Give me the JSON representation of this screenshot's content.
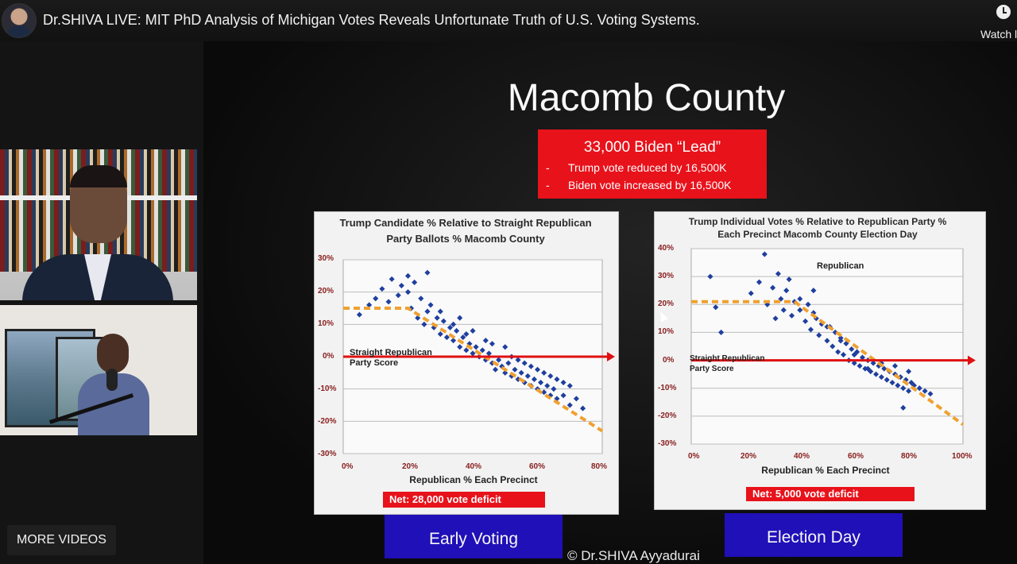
{
  "header": {
    "title": "Dr.SHIVA LIVE: MIT PhD Analysis of Michigan Votes Reveals Unfortunate Truth of U.S. Voting Systems.",
    "watch_label": "Watch l"
  },
  "sidebar": {
    "more_videos_label": "MORE VIDEOS"
  },
  "slide": {
    "title": "Macomb County",
    "box_headline": "33,000 Biden “Lead”",
    "box_lines": [
      "Trump vote reduced by 16,500K",
      "Biden vote increased by 16,500K"
    ],
    "dash": "-",
    "left_chart_title": "Trump Candidate % Relative to Straight Republican Party Ballots % Macomb County",
    "left_yticks": [
      "30%",
      "20%",
      "10%",
      "0%",
      "-10%",
      "-20%",
      "-30%"
    ],
    "left_xticks": [
      "0%",
      "20%",
      "40%",
      "60%",
      "80%"
    ],
    "left_xlabel": "Republican % Each Precinct",
    "left_annotation": "Straight Republican Party Score",
    "left_net": "Net:   28,000 vote deficit",
    "right_chart_title": "Trump Individual Votes % Relative to Republican Party % Each Precinct Macomb County Election Day",
    "right_yticks": [
      "40%",
      "30%",
      "20%",
      "10%",
      "0%",
      "-10%",
      "-20%",
      "-30%"
    ],
    "right_xticks": [
      "0%",
      "20%",
      "40%",
      "60%",
      "80%",
      "100%"
    ],
    "right_xlabel": "Republican % Each Precinct",
    "right_annotation_top": "Republican",
    "right_annotation": "Straight Republican Party Score",
    "right_net": "Net:   5,000 vote deficit",
    "early_voting_label": "Early Voting",
    "election_day_label": "Election Day",
    "credit": "© Dr.SHIVA Ayyadurai"
  },
  "chart_data": [
    {
      "type": "scatter",
      "title": "Trump Candidate % Relative to Straight Republican Party Ballots % Macomb County",
      "xlabel": "Republican % Each Precinct",
      "ylabel": "",
      "xlim": [
        0,
        80
      ],
      "ylim": [
        -30,
        30
      ],
      "series": [
        {
          "points": [
            [
              5,
              13
            ],
            [
              8,
              16
            ],
            [
              10,
              18
            ],
            [
              12,
              21
            ],
            [
              14,
              17
            ],
            [
              15,
              24
            ],
            [
              17,
              19
            ],
            [
              18,
              22
            ],
            [
              20,
              20
            ],
            [
              21,
              15
            ],
            [
              22,
              23
            ],
            [
              23,
              12
            ],
            [
              24,
              18
            ],
            [
              25,
              10
            ],
            [
              26,
              14
            ],
            [
              27,
              16
            ],
            [
              28,
              9
            ],
            [
              29,
              12
            ],
            [
              30,
              7
            ],
            [
              31,
              11
            ],
            [
              32,
              6
            ],
            [
              33,
              9
            ],
            [
              34,
              5
            ],
            [
              35,
              8
            ],
            [
              36,
              3
            ],
            [
              37,
              6
            ],
            [
              38,
              2
            ],
            [
              39,
              4
            ],
            [
              40,
              1
            ],
            [
              41,
              3
            ],
            [
              42,
              0
            ],
            [
              43,
              2
            ],
            [
              44,
              -1
            ],
            [
              45,
              1
            ],
            [
              46,
              -2
            ],
            [
              47,
              -4
            ],
            [
              48,
              -1
            ],
            [
              49,
              -3
            ],
            [
              50,
              -5
            ],
            [
              51,
              -2
            ],
            [
              52,
              -6
            ],
            [
              53,
              -4
            ],
            [
              54,
              -7
            ],
            [
              55,
              -5
            ],
            [
              56,
              -8
            ],
            [
              57,
              -6
            ],
            [
              58,
              -9
            ],
            [
              59,
              -7
            ],
            [
              60,
              -10
            ],
            [
              61,
              -8
            ],
            [
              62,
              -11
            ],
            [
              63,
              -9
            ],
            [
              64,
              -12
            ],
            [
              65,
              -10
            ],
            [
              66,
              -13
            ],
            [
              68,
              -12
            ],
            [
              70,
              -15
            ],
            [
              72,
              -13
            ],
            [
              74,
              -16
            ],
            [
              20,
              25
            ],
            [
              26,
              26
            ],
            [
              34,
              10
            ],
            [
              38,
              7
            ],
            [
              44,
              5
            ],
            [
              50,
              3
            ],
            [
              54,
              -1
            ],
            [
              58,
              -3
            ],
            [
              62,
              -5
            ],
            [
              66,
              -7
            ],
            [
              70,
              -9
            ],
            [
              30,
              14
            ],
            [
              36,
              12
            ],
            [
              40,
              8
            ],
            [
              46,
              4
            ],
            [
              52,
              0
            ],
            [
              56,
              -2
            ],
            [
              60,
              -4
            ],
            [
              64,
              -6
            ],
            [
              68,
              -8
            ]
          ]
        },
        {
          "name": "Straight Republican Party Score",
          "x": [
            0,
            80
          ],
          "y": [
            0,
            0
          ]
        }
      ],
      "trend": {
        "x": [
          0,
          20,
          80
        ],
        "y": [
          15,
          15,
          -23
        ]
      }
    },
    {
      "type": "scatter",
      "title": "Trump Individual Votes % Relative to Republican Party % Each Precinct Macomb County Election Day",
      "xlabel": "Republican % Each Precinct",
      "ylabel": "",
      "xlim": [
        0,
        100
      ],
      "ylim": [
        -30,
        40
      ],
      "series": [
        {
          "points": [
            [
              7,
              30
            ],
            [
              9,
              19
            ],
            [
              11,
              10
            ],
            [
              22,
              24
            ],
            [
              25,
              28
            ],
            [
              27,
              38
            ],
            [
              28,
              20
            ],
            [
              30,
              26
            ],
            [
              31,
              15
            ],
            [
              32,
              31
            ],
            [
              33,
              22
            ],
            [
              34,
              18
            ],
            [
              35,
              25
            ],
            [
              36,
              29
            ],
            [
              37,
              16
            ],
            [
              38,
              21
            ],
            [
              40,
              18
            ],
            [
              42,
              14
            ],
            [
              43,
              20
            ],
            [
              44,
              11
            ],
            [
              45,
              25
            ],
            [
              46,
              15
            ],
            [
              47,
              9
            ],
            [
              48,
              13
            ],
            [
              50,
              7
            ],
            [
              51,
              12
            ],
            [
              52,
              5
            ],
            [
              53,
              10
            ],
            [
              54,
              3
            ],
            [
              55,
              8
            ],
            [
              56,
              2
            ],
            [
              57,
              6
            ],
            [
              58,
              0
            ],
            [
              59,
              4
            ],
            [
              60,
              -1
            ],
            [
              61,
              3
            ],
            [
              62,
              -2
            ],
            [
              63,
              1
            ],
            [
              64,
              -3
            ],
            [
              65,
              0
            ],
            [
              66,
              -4
            ],
            [
              67,
              -1
            ],
            [
              68,
              -5
            ],
            [
              69,
              -2
            ],
            [
              70,
              -6
            ],
            [
              71,
              -3
            ],
            [
              72,
              -7
            ],
            [
              73,
              -4
            ],
            [
              74,
              -8
            ],
            [
              75,
              -5
            ],
            [
              76,
              -9
            ],
            [
              77,
              -6
            ],
            [
              78,
              -10
            ],
            [
              79,
              -7
            ],
            [
              80,
              -11
            ],
            [
              81,
              -8
            ],
            [
              82,
              -9
            ],
            [
              84,
              -10
            ],
            [
              86,
              -11
            ],
            [
              88,
              -12
            ],
            [
              78,
              -17
            ],
            [
              40,
              22
            ],
            [
              45,
              17
            ],
            [
              50,
              12
            ],
            [
              55,
              7
            ],
            [
              60,
              2
            ],
            [
              65,
              -3
            ],
            [
              70,
              -1
            ],
            [
              75,
              -2
            ],
            [
              80,
              -4
            ]
          ]
        },
        {
          "name": "Straight Republican Party Score",
          "x": [
            0,
            100
          ],
          "y": [
            0,
            0
          ]
        }
      ],
      "trend": {
        "x": [
          0,
          38,
          100
        ],
        "y": [
          21,
          21,
          -23
        ]
      }
    }
  ]
}
